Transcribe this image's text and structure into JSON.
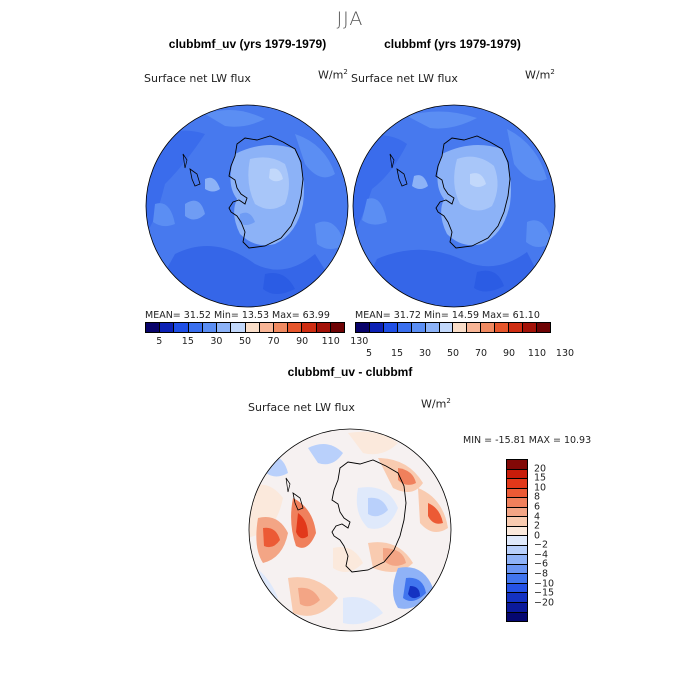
{
  "title": "JJA",
  "panels": [
    {
      "title": "clubbmf_uv (yrs 1979-1979)",
      "variable": "Surface net LW flux",
      "units_base": "W/m",
      "units_exp": "2",
      "stats": "MEAN=  31.52  Min=   13.53  Max=   63.99"
    },
    {
      "title": "clubbmf (yrs 1979-1979)",
      "variable": "Surface net LW flux",
      "units_base": "W/m",
      "units_exp": "2",
      "stats": "MEAN=  31.72  Min=   14.59  Max=   61.10"
    },
    {
      "title": "clubbmf_uv - clubbmf",
      "variable": "Surface net LW flux",
      "units_base": "W/m",
      "units_exp": "2",
      "stats": "MIN = -15.81 MAX =  10.93"
    }
  ],
  "colorbar_field": {
    "ticks": [
      "5",
      "15",
      "30",
      "50",
      "70",
      "90",
      "110",
      "130"
    ],
    "colors": [
      "#08036b",
      "#0c21b5",
      "#1f4fe6",
      "#3a6fee",
      "#5b8ef3",
      "#8cb2f7",
      "#c2d8fb",
      "#f9ddc8",
      "#f8b596",
      "#f08a61",
      "#e6562c",
      "#cf2d12",
      "#a31208",
      "#6e0304"
    ]
  },
  "colorbar_diff": {
    "ticks": [
      "20",
      "15",
      "10",
      "8",
      "6",
      "4",
      "2",
      "0",
      "−2",
      "−4",
      "−6",
      "−8",
      "−10",
      "−15",
      "−20"
    ],
    "colors": [
      "#820806",
      "#c81c0a",
      "#e2381a",
      "#ec5a35",
      "#f0805c",
      "#f3a585",
      "#f9cbb0",
      "#fbe9dc",
      "#dfe9fb",
      "#b9d0fb",
      "#8fb2f7",
      "#6a95f3",
      "#4175ee",
      "#2552e6",
      "#1432c2",
      "#0b1a9b",
      "#050770"
    ]
  }
}
